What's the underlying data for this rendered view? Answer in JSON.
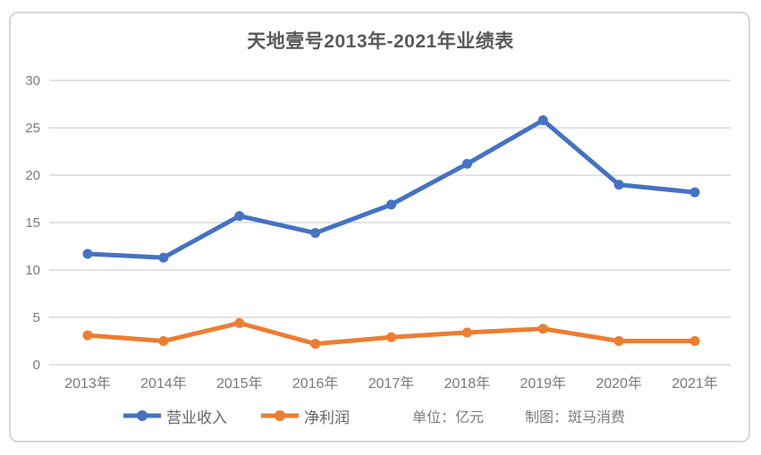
{
  "chart_data": {
    "type": "line",
    "title": "天地壹号2013年-2021年业绩表",
    "categories": [
      "2013年",
      "2014年",
      "2015年",
      "2016年",
      "2017年",
      "2018年",
      "2019年",
      "2020年",
      "2021年"
    ],
    "series": [
      {
        "name": "营业收入",
        "color": "#4472C4",
        "values": [
          11.7,
          11.3,
          15.7,
          13.9,
          16.9,
          21.2,
          25.8,
          19.0,
          18.2
        ]
      },
      {
        "name": "净利润",
        "color": "#ED7D31",
        "values": [
          3.1,
          2.5,
          4.4,
          2.2,
          2.9,
          3.4,
          3.8,
          2.5,
          2.5
        ]
      }
    ],
    "ylim": [
      0,
      30
    ],
    "yticks": [
      0,
      5,
      10,
      15,
      20,
      25,
      30
    ],
    "grid": true,
    "legend_position": "bottom",
    "unit_note": "单位：亿元",
    "credit_note": "制图：斑马消费"
  },
  "colors": {
    "gridline": "#d9d9d9",
    "card_border": "#d7d7d7",
    "title_text": "#595959",
    "axis_text": "#7a7a7a",
    "legend_text": "#666666"
  }
}
